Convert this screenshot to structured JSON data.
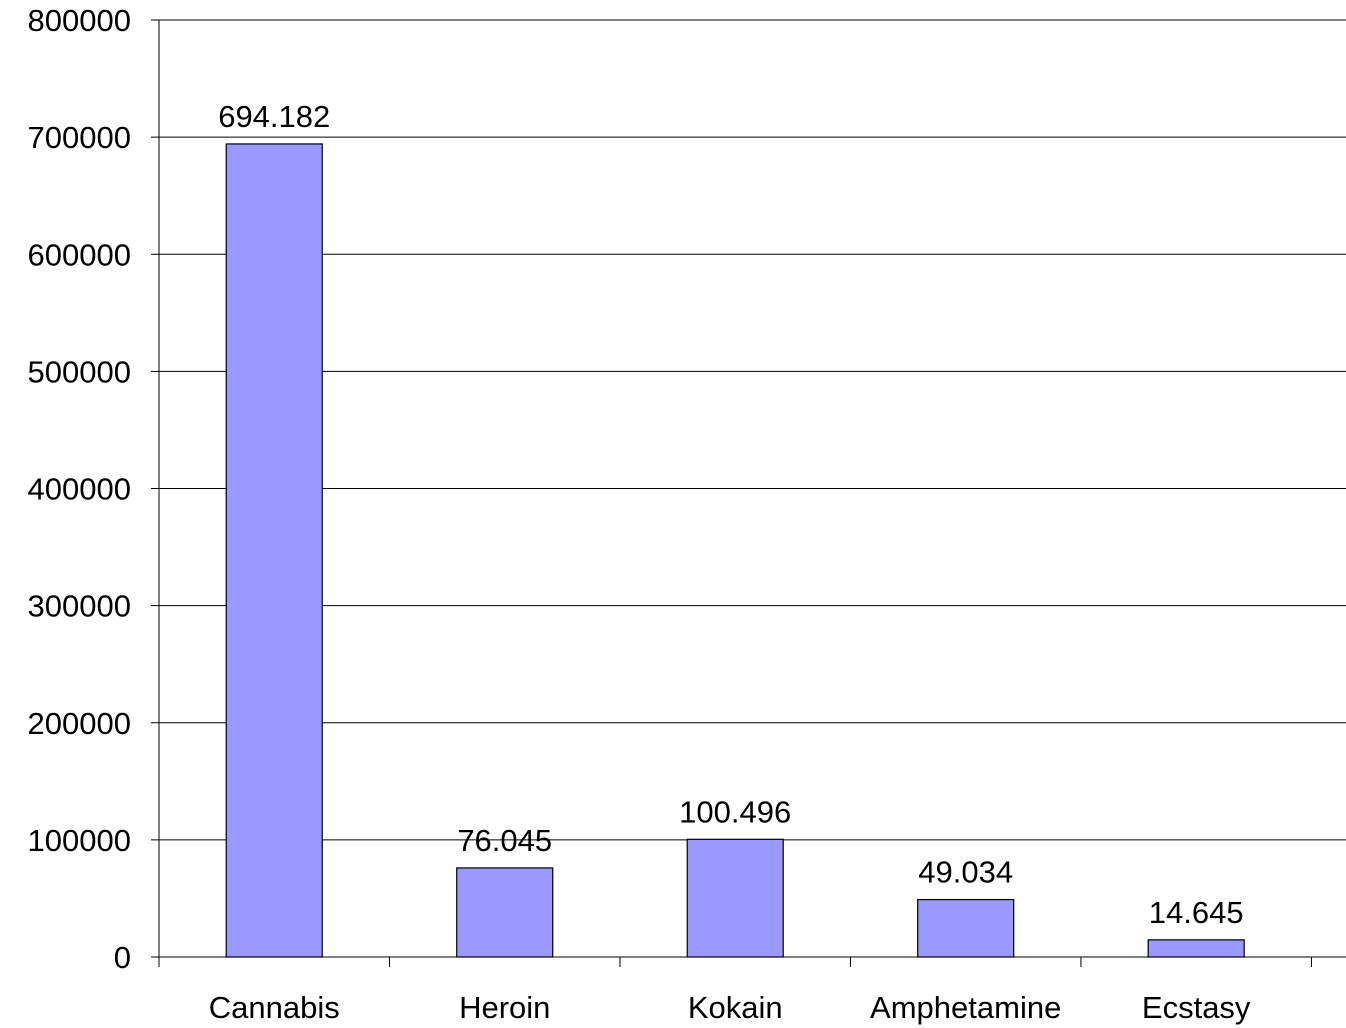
{
  "chart_data": {
    "type": "bar",
    "categories": [
      "Cannabis",
      "Heroin",
      "Kokain",
      "Amphetamine",
      "Ecstasy"
    ],
    "values": [
      694182,
      76045,
      100496,
      49034,
      14645
    ],
    "data_labels": [
      "694.182",
      "76.045",
      "100.496",
      "49.034",
      "14.645"
    ],
    "y_ticks": [
      "0",
      "100000",
      "200000",
      "300000",
      "400000",
      "500000",
      "600000",
      "700000",
      "800000"
    ],
    "ylim": [
      0,
      800000
    ],
    "title": "",
    "xlabel": "",
    "ylabel": "",
    "grid": true,
    "legend": "none",
    "colors": {
      "bar_fill": "#9999ff",
      "bar_stroke": "#000000",
      "grid": "#000000",
      "axis": "#000000",
      "background": "#ffffff"
    }
  }
}
